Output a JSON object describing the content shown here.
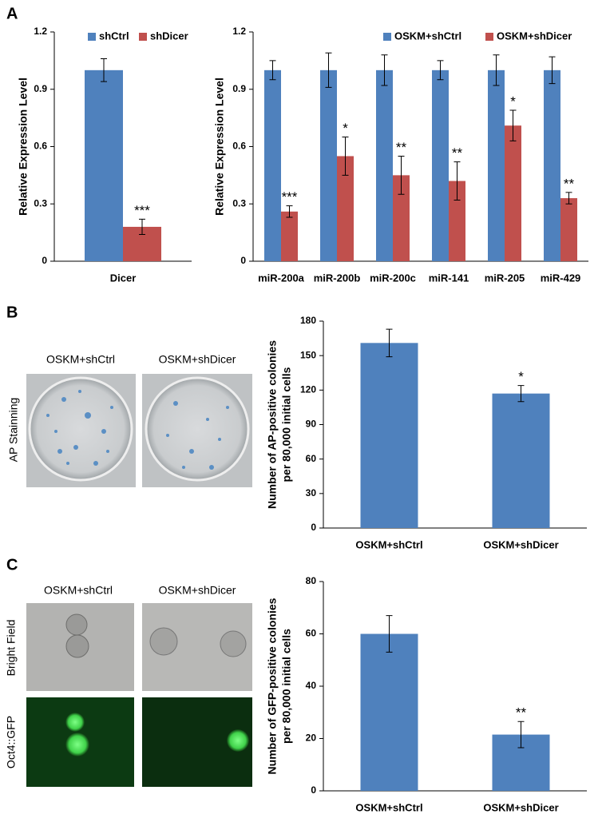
{
  "figure": {
    "panel_labels": [
      "A",
      "B",
      "C"
    ],
    "panel_b": {
      "columns": [
        "OSKM+shCtrl",
        "OSKM+shDicer"
      ],
      "row_label": "AP Stainning"
    },
    "panel_c": {
      "columns": [
        "OSKM+shCtrl",
        "OSKM+shDicer"
      ],
      "row_labels": [
        "Bright Field",
        "Oct4::GFP"
      ]
    }
  },
  "chart_data": [
    {
      "type": "bar",
      "ylabel": "Relative Expression Level",
      "categories": [
        "Dicer"
      ],
      "ylim": [
        0,
        1.2
      ],
      "yticks": [
        0,
        0.3,
        0.6,
        0.9,
        1.2
      ],
      "series": [
        {
          "name": "shCtrl",
          "color": "#4f81bd",
          "values": [
            1.0
          ],
          "errors": [
            0.06
          ]
        },
        {
          "name": "shDicer",
          "color": "#c0504d",
          "values": [
            0.18
          ],
          "errors": [
            0.04
          ],
          "annotations": [
            "***"
          ]
        }
      ]
    },
    {
      "type": "bar",
      "ylabel": "Relative Expression Level",
      "categories": [
        "miR-200a",
        "miR-200b",
        "miR-200c",
        "miR-141",
        "miR-205",
        "miR-429"
      ],
      "ylim": [
        0,
        1.2
      ],
      "yticks": [
        0,
        0.3,
        0.6,
        0.9,
        1.2
      ],
      "series": [
        {
          "name": "OSKM+shCtrl",
          "color": "#4f81bd",
          "values": [
            1.0,
            1.0,
            1.0,
            1.0,
            1.0,
            1.0
          ],
          "errors": [
            0.05,
            0.09,
            0.08,
            0.05,
            0.08,
            0.07
          ]
        },
        {
          "name": "OSKM+shDicer",
          "color": "#c0504d",
          "values": [
            0.26,
            0.55,
            0.45,
            0.42,
            0.71,
            0.33
          ],
          "errors": [
            0.03,
            0.1,
            0.1,
            0.1,
            0.08,
            0.03
          ],
          "annotations": [
            "***",
            "*",
            "**",
            "**",
            "*",
            "**"
          ]
        }
      ]
    },
    {
      "type": "bar",
      "ylabel": [
        "Number of AP-positive colonies",
        "per 80,000 initial cells"
      ],
      "categories": [
        "OSKM+shCtrl",
        "OSKM+shDicer"
      ],
      "color": "#4f81bd",
      "values": [
        161,
        117
      ],
      "errors": [
        12,
        7
      ],
      "annotations": [
        null,
        "*"
      ],
      "ylim": [
        0,
        180
      ],
      "yticks": [
        0,
        30,
        60,
        90,
        120,
        150,
        180
      ]
    },
    {
      "type": "bar",
      "ylabel": [
        "Number of GFP-positive colonies",
        "per 80,000 initial cells"
      ],
      "categories": [
        "OSKM+shCtrl",
        "OSKM+shDicer"
      ],
      "color": "#4f81bd",
      "values": [
        60,
        21.5
      ],
      "errors": [
        7,
        5
      ],
      "annotations": [
        null,
        "**"
      ],
      "ylim": [
        0,
        80
      ],
      "yticks": [
        0,
        20,
        40,
        60,
        80
      ]
    }
  ]
}
